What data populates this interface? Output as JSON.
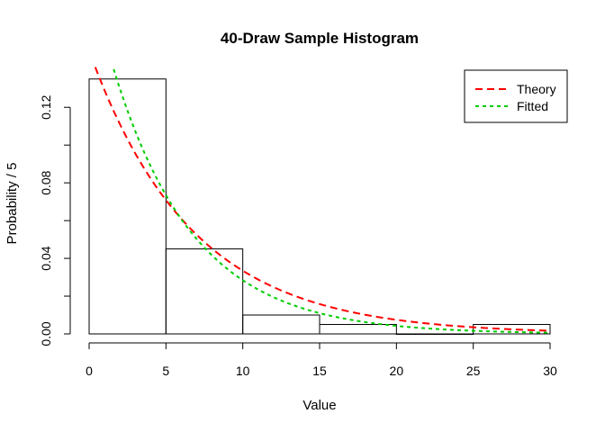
{
  "chart_data": {
    "type": "bar",
    "title": "40-Draw Sample Histogram",
    "xlabel": "Value",
    "ylabel": "Probability / 5",
    "xlim": [
      0,
      30
    ],
    "ylim": [
      0,
      0.14
    ],
    "x_ticks": [
      "0",
      "5",
      "10",
      "15",
      "20",
      "25",
      "30"
    ],
    "y_ticks": [
      "0.00",
      "0.04",
      "0.08",
      "0.12"
    ],
    "bins": [
      {
        "from": 0,
        "to": 5,
        "value": 0.135
      },
      {
        "from": 5,
        "to": 10,
        "value": 0.045
      },
      {
        "from": 10,
        "to": 15,
        "value": 0.01
      },
      {
        "from": 15,
        "to": 20,
        "value": 0.005
      },
      {
        "from": 20,
        "to": 25,
        "value": 0.0
      },
      {
        "from": 25,
        "to": 30,
        "value": 0.005
      }
    ],
    "series": [
      {
        "name": "Theory",
        "color": "#ff0000",
        "style": "dashed",
        "rate": 0.15
      },
      {
        "name": "Fitted",
        "color": "#00cd00",
        "style": "dotted",
        "rate": 0.19
      }
    ],
    "legend_position": "top-right",
    "grid": false
  }
}
